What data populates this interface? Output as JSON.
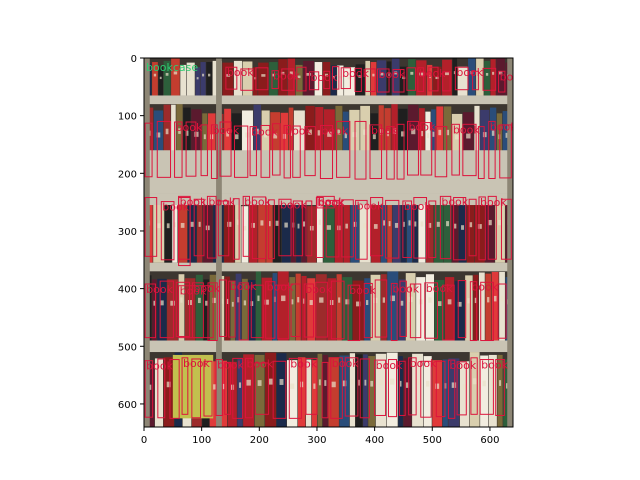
{
  "image": {
    "description_colors": {
      "box_book": "#dc143c",
      "box_bookcase": "#2ecc71",
      "shelf": "#c7c3b6",
      "background_top": "#6a5a4d"
    }
  },
  "axes": {
    "x_ticks": [
      "0",
      "100",
      "200",
      "300",
      "400",
      "500",
      "600"
    ],
    "y_ticks": [
      "0",
      "100",
      "200",
      "300",
      "400",
      "500",
      "600"
    ]
  },
  "labels": {
    "book": "book",
    "bookcase": "bookcase"
  }
}
